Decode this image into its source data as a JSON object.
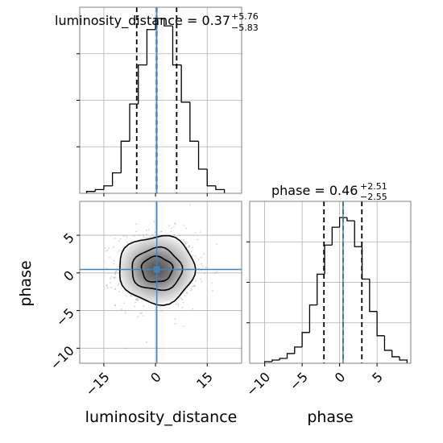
{
  "chart_data": {
    "type": "corner",
    "parameters": [
      "luminosity_distance",
      "phase"
    ],
    "truths": {
      "luminosity_distance": 0.37,
      "phase": 0.46
    },
    "titles": [
      {
        "text": "luminosity_distance = 0.37",
        "sup": "+5.76",
        "sub": "−5.83"
      },
      {
        "text": "phase = 0.46",
        "sup": "+2.51",
        "sub": "−2.55"
      }
    ],
    "panels": [
      {
        "id": "hist-luminosity_distance",
        "type": "histogram",
        "param": "luminosity_distance",
        "xlim": [
          -22,
          25
        ],
        "ylim": [
          0,
          1
        ],
        "xticks": [
          -15,
          0,
          15
        ],
        "xtick_labels": [
          "−15",
          "0",
          "15"
        ],
        "bin_edges": [
          -20,
          -17.5,
          -15,
          -12.5,
          -10,
          -7.5,
          -5,
          -2.5,
          0,
          2.5,
          5,
          7.5,
          10,
          12.5,
          15,
          17.5,
          20
        ],
        "heights": [
          0.01,
          0.02,
          0.04,
          0.11,
          0.28,
          0.48,
          0.69,
          0.88,
          0.94,
          0.9,
          0.69,
          0.49,
          0.28,
          0.13,
          0.04,
          0.02
        ],
        "quantiles": [
          -5.46,
          0.37,
          6.13
        ],
        "grid": true
      },
      {
        "id": "hist-phase",
        "type": "histogram",
        "param": "phase",
        "xlim": [
          -12,
          9.5
        ],
        "ylim": [
          0,
          1
        ],
        "xticks": [
          -10,
          -5,
          0,
          5
        ],
        "xtick_labels": [
          "−10",
          "−5",
          "0",
          "5"
        ],
        "bin_edges": [
          -10,
          -9,
          -8,
          -7,
          -6,
          -5,
          -4,
          -3,
          -2,
          -1,
          0,
          1,
          2,
          3,
          4,
          5,
          6,
          7,
          8,
          9
        ],
        "heights": [
          0.01,
          0.02,
          0.03,
          0.06,
          0.1,
          0.19,
          0.36,
          0.55,
          0.73,
          0.84,
          0.9,
          0.88,
          0.72,
          0.52,
          0.32,
          0.17,
          0.08,
          0.04,
          0.02
        ],
        "quantiles": [
          -2.09,
          0.46,
          2.97
        ],
        "grid": true
      },
      {
        "id": "joint",
        "type": "2d-density",
        "x_param": "luminosity_distance",
        "y_param": "phase",
        "xlim": [
          -22,
          25
        ],
        "ylim": [
          -12,
          9.5
        ],
        "xticks": [
          -15,
          0,
          15
        ],
        "xtick_labels": [
          "−15",
          "0",
          "15"
        ],
        "yticks": [
          -10,
          -5,
          0,
          5
        ],
        "ytick_labels": [
          "−10",
          "−5",
          "0",
          "5"
        ],
        "center": [
          0.37,
          0.46
        ],
        "contour_radii": [
          [
            4.5,
            1.7
          ],
          [
            7.3,
            2.8
          ],
          [
            11,
            4.5
          ]
        ],
        "grid": true
      }
    ],
    "xlabels": [
      "luminosity_distance",
      "phase"
    ],
    "ylabel": "phase",
    "truth_color": "#4682b4",
    "hist_color": "#000000",
    "contour_color": "#000000",
    "grid_color": "#b0b0b0"
  }
}
